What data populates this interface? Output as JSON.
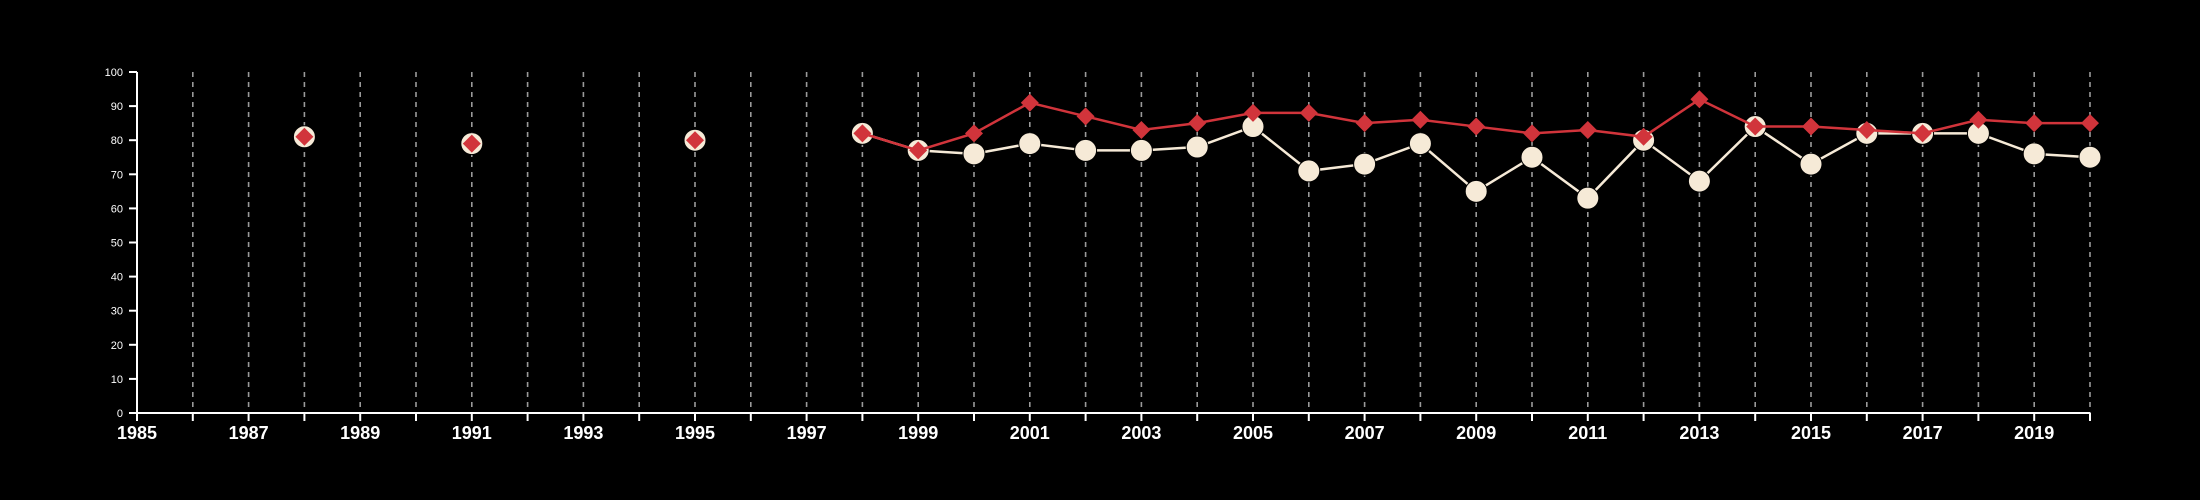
{
  "chart_data": {
    "type": "line",
    "title": "",
    "xlabel": "",
    "ylabel": "",
    "xlim": [
      1985,
      2020
    ],
    "ylim": [
      0,
      100
    ],
    "x_ticks": [
      "1985",
      "1987",
      "1989",
      "1991",
      "1993",
      "1995",
      "1997",
      "1999",
      "2001",
      "2003",
      "2005",
      "2007",
      "2009",
      "2011",
      "2013",
      "2015",
      "2017",
      "2019"
    ],
    "y_ticks": [
      "0",
      "10",
      "20",
      "30",
      "40",
      "50",
      "60",
      "70",
      "80",
      "90",
      "100"
    ],
    "vertical_gridlines": "dashed, every year",
    "colors": {
      "background": "#000000",
      "axis": "#ffffff",
      "grid": "#9a9a9a",
      "series_circle": "#f6ead7",
      "series_diamond": "#d1343b"
    },
    "series": [
      {
        "marker": "circle",
        "color": "#f6ead7",
        "points": [
          {
            "x": 1988,
            "y": 81
          },
          {
            "x": 1991,
            "y": 79
          },
          {
            "x": 1995,
            "y": 80
          },
          {
            "x": 1998,
            "y": 82
          },
          {
            "x": 1999,
            "y": 77
          },
          {
            "x": 2000,
            "y": 76
          },
          {
            "x": 2001,
            "y": 79
          },
          {
            "x": 2002,
            "y": 77
          },
          {
            "x": 2003,
            "y": 77
          },
          {
            "x": 2004,
            "y": 78
          },
          {
            "x": 2005,
            "y": 84
          },
          {
            "x": 2006,
            "y": 71
          },
          {
            "x": 2007,
            "y": 73
          },
          {
            "x": 2008,
            "y": 79
          },
          {
            "x": 2009,
            "y": 65
          },
          {
            "x": 2010,
            "y": 75
          },
          {
            "x": 2011,
            "y": 63
          },
          {
            "x": 2012,
            "y": 80
          },
          {
            "x": 2013,
            "y": 68
          },
          {
            "x": 2014,
            "y": 84
          },
          {
            "x": 2015,
            "y": 73
          },
          {
            "x": 2016,
            "y": 82
          },
          {
            "x": 2017,
            "y": 82
          },
          {
            "x": 2018,
            "y": 82
          },
          {
            "x": 2019,
            "y": 76
          },
          {
            "x": 2020,
            "y": 75
          }
        ]
      },
      {
        "marker": "diamond",
        "color": "#d1343b",
        "points": [
          {
            "x": 1988,
            "y": 81
          },
          {
            "x": 1991,
            "y": 79
          },
          {
            "x": 1995,
            "y": 80
          },
          {
            "x": 1998,
            "y": 82
          },
          {
            "x": 1999,
            "y": 77
          },
          {
            "x": 2000,
            "y": 82
          },
          {
            "x": 2001,
            "y": 91
          },
          {
            "x": 2002,
            "y": 87
          },
          {
            "x": 2003,
            "y": 83
          },
          {
            "x": 2004,
            "y": 85
          },
          {
            "x": 2005,
            "y": 88
          },
          {
            "x": 2006,
            "y": 88
          },
          {
            "x": 2007,
            "y": 85
          },
          {
            "x": 2008,
            "y": 86
          },
          {
            "x": 2009,
            "y": 84
          },
          {
            "x": 2010,
            "y": 82
          },
          {
            "x": 2011,
            "y": 83
          },
          {
            "x": 2012,
            "y": 81
          },
          {
            "x": 2013,
            "y": 92
          },
          {
            "x": 2014,
            "y": 84
          },
          {
            "x": 2015,
            "y": 84
          },
          {
            "x": 2016,
            "y": 83
          },
          {
            "x": 2017,
            "y": 82
          },
          {
            "x": 2018,
            "y": 86
          },
          {
            "x": 2019,
            "y": 85
          },
          {
            "x": 2020,
            "y": 85
          }
        ]
      }
    ]
  }
}
